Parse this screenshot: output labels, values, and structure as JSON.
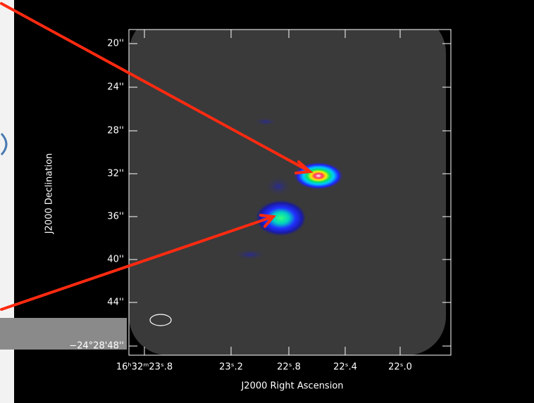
{
  "axes": {
    "y_title": "J2000 Declination",
    "x_title": "J2000 Right Ascension",
    "y_ticks": [
      "20''",
      "24''",
      "28''",
      "32''",
      "36''",
      "40''",
      "44''",
      "−24°28'48''"
    ],
    "x_ticks": [
      "16ʰ32ᵐ23ˢ.8",
      "23ˢ.2",
      "22ˢ.8",
      "22ˢ.4",
      "22ˢ.0"
    ]
  }
}
